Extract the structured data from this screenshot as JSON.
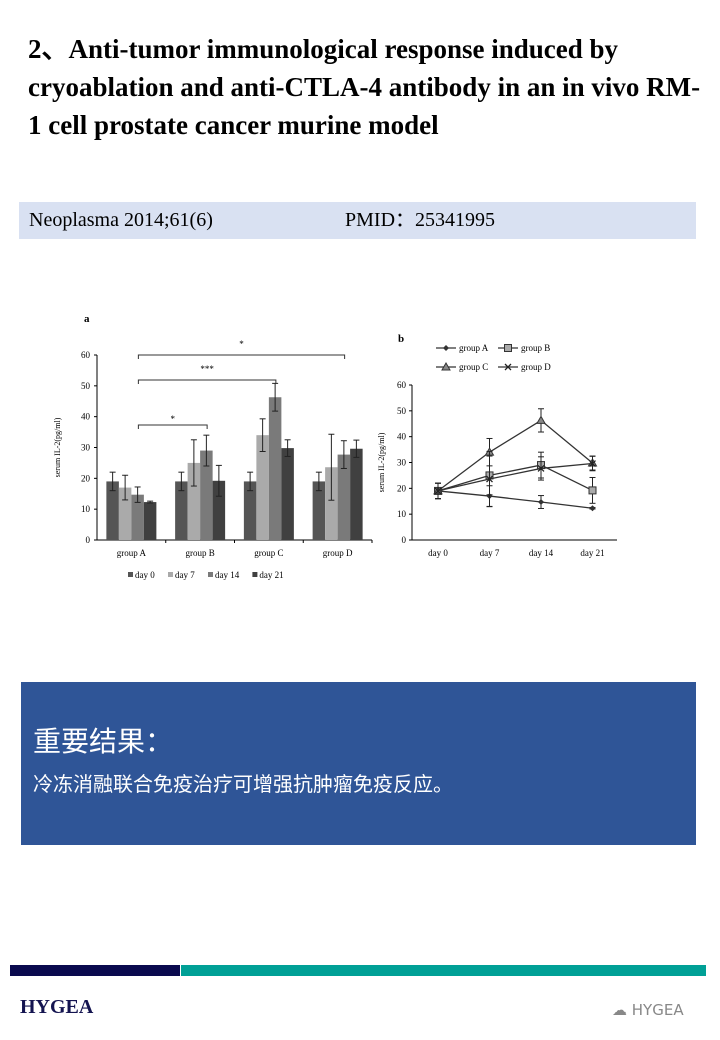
{
  "title": "2、Anti-tumor immunological response induced by cryoablation and anti-CTLA-4 antibody in an in vivo RM-1 cell prostate cancer murine model",
  "citation": {
    "journal": "Neoplasma 2014;61(6)",
    "pmid": "PMID：25341995"
  },
  "chart_data": [
    {
      "type": "bar",
      "panel": "a",
      "ylabel": "serum IL-2(pg/ml)",
      "ylim": [
        0,
        60
      ],
      "yticks": [
        0,
        10,
        20,
        30,
        40,
        50,
        60
      ],
      "categories": [
        "group A",
        "group B",
        "group C",
        "group D"
      ],
      "series": [
        {
          "name": "day 0",
          "color": "#555555",
          "values": [
            19,
            19,
            19,
            19
          ],
          "err": [
            3,
            3,
            3,
            3
          ]
        },
        {
          "name": "day 7",
          "color": "#aaaaaa",
          "values": [
            17,
            25,
            34,
            23.6
          ],
          "err": [
            4,
            7.5,
            5.3,
            10.7
          ]
        },
        {
          "name": "day 14",
          "color": "#7a7a7a",
          "values": [
            14.7,
            29,
            46.3,
            27.7
          ],
          "err": [
            2.5,
            5,
            4.5,
            4.5
          ]
        },
        {
          "name": "day 21",
          "color": "#404040",
          "values": [
            12.3,
            19.2,
            29.8,
            29.6
          ],
          "err": [
            0.3,
            5,
            2.7,
            2.8
          ]
        }
      ],
      "significance": [
        {
          "from": "group A",
          "to": "group B",
          "label": "*"
        },
        {
          "from": "group A",
          "to": "group C",
          "label": "***"
        },
        {
          "from": "group A",
          "to": "group D",
          "label": "*"
        }
      ],
      "legend": "bottom"
    },
    {
      "type": "line",
      "panel": "b",
      "ylabel": "serum IL-2(pg/ml)",
      "ylim": [
        0,
        60
      ],
      "yticks": [
        0,
        10,
        20,
        30,
        40,
        50,
        60
      ],
      "x": [
        "day 0",
        "day 7",
        "day 14",
        "day 21"
      ],
      "series": [
        {
          "name": "group A",
          "marker": "diamond",
          "values": [
            19,
            17,
            14.7,
            12.3
          ],
          "err": [
            3,
            4,
            2.5,
            0.3
          ]
        },
        {
          "name": "group B",
          "marker": "square",
          "values": [
            19,
            25,
            29,
            19.2
          ],
          "err": [
            3,
            7.5,
            5,
            5
          ]
        },
        {
          "name": "group C",
          "marker": "triangle",
          "values": [
            19,
            34,
            46.3,
            29.8
          ],
          "err": [
            3,
            5.3,
            4.5,
            2.7
          ]
        },
        {
          "name": "group D",
          "marker": "cross",
          "values": [
            19,
            23.6,
            27.7,
            29.6
          ],
          "err": [
            3,
            10.7,
            4.5,
            2.8
          ]
        }
      ],
      "legend": "top"
    }
  ],
  "result": {
    "heading": "重要结果：",
    "text": "冷冻消融联合免疫治疗可增强抗肿瘤免疫反应。"
  },
  "footer": {
    "logo": "HYGEA",
    "watermark": "HYGEA"
  }
}
